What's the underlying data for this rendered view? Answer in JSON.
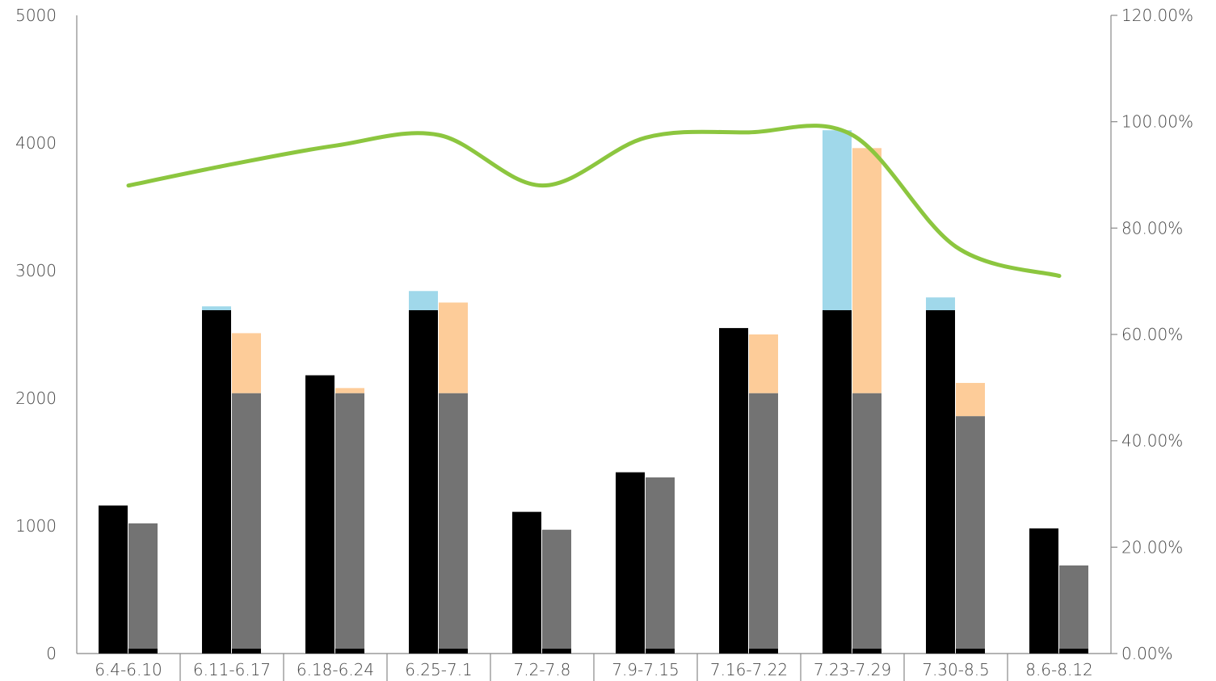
{
  "chart_data": {
    "type": "bar",
    "title": "",
    "xlabel": "",
    "ylabel": "",
    "y2label": "",
    "grid": false,
    "legend": "none",
    "categories": [
      "6.4-6.10",
      "6.11-6.17",
      "6.18-6.24",
      "6.25-7.1",
      "7.2-7.8",
      "7.9-7.15",
      "7.16-7.22",
      "7.23-7.29",
      "7.30-8.5",
      "8.6-8.12"
    ],
    "ylim": [
      0,
      5000
    ],
    "y2lim": [
      0,
      1.2
    ],
    "yticks": [
      "0",
      "1000",
      "2000",
      "3000",
      "4000",
      "5000"
    ],
    "y2ticks": [
      "0.00%",
      "20.00%",
      "40.00%",
      "60.00%",
      "80.00%",
      "100.00%",
      "120.00%"
    ],
    "series": [
      {
        "values": [
          1160,
          2690,
          2180,
          2690,
          1110,
          1420,
          2550,
          2690,
          2690,
          980
        ],
        "color": "#000000"
      },
      {
        "values": [
          0,
          30,
          0,
          150,
          0,
          0,
          0,
          1410,
          100,
          0
        ],
        "color": "#a0d8ea"
      },
      {
        "values": [
          1020,
          2040,
          2040,
          2040,
          970,
          1380,
          2040,
          2040,
          1860,
          690
        ],
        "color": "#737373"
      },
      {
        "values": [
          0,
          470,
          40,
          710,
          0,
          0,
          460,
          1920,
          260,
          0
        ],
        "color": "#fdcc99"
      },
      {
        "type": "line",
        "axis": "right",
        "color": "#8cc63f",
        "values": [
          0.88,
          0.92,
          0.955,
          0.975,
          0.88,
          0.97,
          0.98,
          0.975,
          0.765,
          0.71
        ]
      }
    ]
  }
}
